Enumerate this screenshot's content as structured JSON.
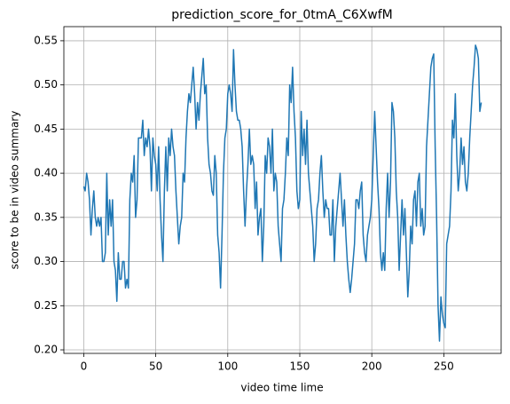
{
  "chart_data": {
    "type": "line",
    "title": "prediction_score_for_0tmA_C6XwfM",
    "xlabel": "video time lime",
    "ylabel": "score to be in video summary",
    "xlim": [
      -13.8,
      289.8
    ],
    "ylim": [
      0.196,
      0.566
    ],
    "xticks": [
      0,
      50,
      100,
      150,
      200,
      250
    ],
    "yticks": [
      {
        "value": 0.2,
        "label": "0.20"
      },
      0.25,
      {
        "value": 0.3,
        "label": "0.30"
      },
      0.35,
      {
        "value": 0.4,
        "label": "0.40"
      },
      0.45,
      {
        "value": 0.5,
        "label": "0.50"
      },
      0.55
    ],
    "grid": true,
    "x": [
      0,
      1,
      2,
      3,
      4,
      5,
      6,
      7,
      8,
      9,
      10,
      11,
      12,
      13,
      14,
      15,
      16,
      17,
      18,
      19,
      20,
      21,
      22,
      23,
      24,
      25,
      26,
      27,
      28,
      29,
      30,
      31,
      32,
      33,
      34,
      35,
      36,
      37,
      38,
      39,
      40,
      41,
      42,
      43,
      44,
      45,
      46,
      47,
      48,
      49,
      50,
      51,
      52,
      53,
      54,
      55,
      56,
      57,
      58,
      59,
      60,
      61,
      62,
      63,
      64,
      65,
      66,
      67,
      68,
      69,
      70,
      71,
      72,
      73,
      74,
      75,
      76,
      77,
      78,
      79,
      80,
      81,
      82,
      83,
      84,
      85,
      86,
      87,
      88,
      89,
      90,
      91,
      92,
      93,
      94,
      95,
      96,
      97,
      98,
      99,
      100,
      101,
      102,
      103,
      104,
      105,
      106,
      107,
      108,
      109,
      110,
      111,
      112,
      113,
      114,
      115,
      116,
      117,
      118,
      119,
      120,
      121,
      122,
      123,
      124,
      125,
      126,
      127,
      128,
      129,
      130,
      131,
      132,
      133,
      134,
      135,
      136,
      137,
      138,
      139,
      140,
      141,
      142,
      143,
      144,
      145,
      146,
      147,
      148,
      149,
      150,
      151,
      152,
      153,
      154,
      155,
      156,
      157,
      158,
      159,
      160,
      161,
      162,
      163,
      164,
      165,
      166,
      167,
      168,
      169,
      170,
      171,
      172,
      173,
      174,
      175,
      176,
      177,
      178,
      179,
      180,
      181,
      182,
      183,
      184,
      185,
      186,
      187,
      188,
      189,
      190,
      191,
      192,
      193,
      194,
      195,
      196,
      197,
      198,
      199,
      200,
      201,
      202,
      203,
      204,
      205,
      206,
      207,
      208,
      209,
      210,
      211,
      212,
      213,
      214,
      215,
      216,
      217,
      218,
      219,
      220,
      221,
      222,
      223,
      224,
      225,
      226,
      227,
      228,
      229,
      230,
      231,
      232,
      233,
      234,
      235,
      236,
      237,
      238,
      239,
      240,
      241,
      242,
      243,
      244,
      245,
      246,
      247,
      248,
      249,
      250,
      251,
      252,
      253,
      254,
      255,
      256,
      257,
      258,
      259,
      260,
      261,
      262,
      263,
      264,
      265,
      266,
      267,
      268,
      269,
      270,
      271,
      272,
      273,
      274,
      275,
      276
    ],
    "series": [
      {
        "color": "#1f77b4",
        "values": [
          0.385,
          0.38,
          0.4,
          0.39,
          0.37,
          0.33,
          0.36,
          0.38,
          0.35,
          0.34,
          0.35,
          0.34,
          0.35,
          0.3,
          0.3,
          0.31,
          0.4,
          0.33,
          0.37,
          0.34,
          0.37,
          0.3,
          0.29,
          0.255,
          0.31,
          0.28,
          0.28,
          0.3,
          0.3,
          0.27,
          0.28,
          0.27,
          0.37,
          0.4,
          0.39,
          0.42,
          0.35,
          0.37,
          0.44,
          0.44,
          0.44,
          0.46,
          0.42,
          0.44,
          0.43,
          0.45,
          0.43,
          0.38,
          0.44,
          0.42,
          0.41,
          0.38,
          0.43,
          0.37,
          0.33,
          0.3,
          0.38,
          0.43,
          0.38,
          0.44,
          0.42,
          0.45,
          0.43,
          0.42,
          0.38,
          0.35,
          0.32,
          0.34,
          0.35,
          0.4,
          0.39,
          0.44,
          0.47,
          0.49,
          0.48,
          0.5,
          0.52,
          0.49,
          0.45,
          0.48,
          0.46,
          0.49,
          0.51,
          0.53,
          0.49,
          0.5,
          0.44,
          0.41,
          0.4,
          0.38,
          0.375,
          0.42,
          0.4,
          0.33,
          0.31,
          0.27,
          0.33,
          0.4,
          0.44,
          0.45,
          0.49,
          0.5,
          0.49,
          0.47,
          0.54,
          0.5,
          0.47,
          0.46,
          0.46,
          0.45,
          0.43,
          0.38,
          0.34,
          0.38,
          0.41,
          0.45,
          0.41,
          0.42,
          0.41,
          0.36,
          0.39,
          0.33,
          0.35,
          0.36,
          0.3,
          0.34,
          0.42,
          0.4,
          0.44,
          0.43,
          0.4,
          0.45,
          0.38,
          0.4,
          0.39,
          0.34,
          0.32,
          0.3,
          0.36,
          0.37,
          0.4,
          0.44,
          0.42,
          0.5,
          0.48,
          0.52,
          0.47,
          0.44,
          0.38,
          0.36,
          0.37,
          0.47,
          0.42,
          0.45,
          0.41,
          0.46,
          0.4,
          0.38,
          0.36,
          0.34,
          0.3,
          0.32,
          0.36,
          0.37,
          0.4,
          0.42,
          0.38,
          0.35,
          0.37,
          0.36,
          0.36,
          0.33,
          0.33,
          0.37,
          0.3,
          0.34,
          0.36,
          0.38,
          0.4,
          0.37,
          0.34,
          0.37,
          0.33,
          0.3,
          0.28,
          0.265,
          0.28,
          0.3,
          0.32,
          0.37,
          0.37,
          0.36,
          0.38,
          0.39,
          0.33,
          0.31,
          0.3,
          0.33,
          0.34,
          0.35,
          0.37,
          0.42,
          0.47,
          0.43,
          0.39,
          0.36,
          0.31,
          0.29,
          0.31,
          0.29,
          0.36,
          0.4,
          0.35,
          0.39,
          0.48,
          0.47,
          0.44,
          0.38,
          0.35,
          0.29,
          0.33,
          0.37,
          0.33,
          0.36,
          0.31,
          0.26,
          0.29,
          0.34,
          0.32,
          0.37,
          0.38,
          0.34,
          0.39,
          0.4,
          0.34,
          0.36,
          0.33,
          0.34,
          0.43,
          0.46,
          0.49,
          0.52,
          0.53,
          0.535,
          0.43,
          0.35,
          0.25,
          0.21,
          0.26,
          0.24,
          0.23,
          0.225,
          0.32,
          0.33,
          0.34,
          0.38,
          0.46,
          0.44,
          0.49,
          0.42,
          0.38,
          0.4,
          0.44,
          0.41,
          0.43,
          0.39,
          0.38,
          0.4,
          0.44,
          0.47,
          0.5,
          0.52,
          0.545,
          0.54,
          0.53,
          0.47,
          0.48
        ]
      }
    ]
  }
}
